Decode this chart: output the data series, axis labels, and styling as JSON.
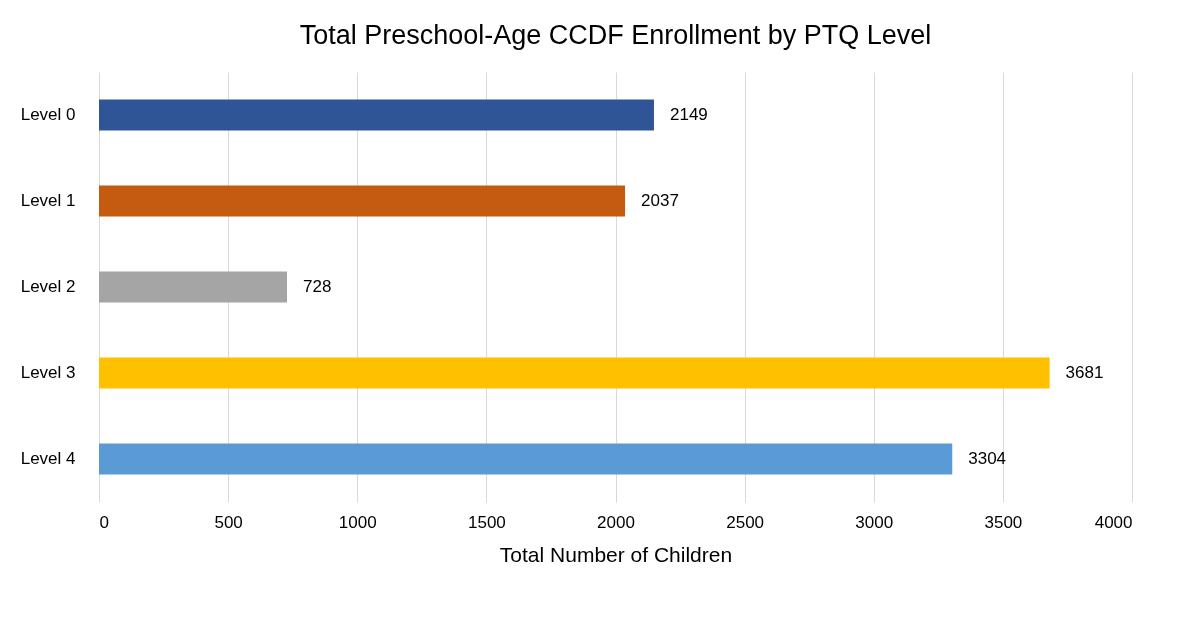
{
  "chart_data": {
    "type": "bar",
    "orientation": "horizontal",
    "title": "Total Preschool-Age CCDF Enrollment by PTQ Level",
    "xlabel": "Total Number of Children",
    "categories": [
      "Level 0",
      "Level 1",
      "Level 2",
      "Level 3",
      "Level 4"
    ],
    "values": [
      2149,
      2037,
      728,
      3681,
      3304
    ],
    "colors": [
      "#2f5597",
      "#c55a11",
      "#a5a5a5",
      "#ffc000",
      "#5b9bd5"
    ],
    "xlim": [
      0,
      4000
    ],
    "xticks": [
      0,
      500,
      1000,
      1500,
      2000,
      2500,
      3000,
      3500,
      4000
    ],
    "grid": "x",
    "data_labels": true,
    "legend": false
  }
}
